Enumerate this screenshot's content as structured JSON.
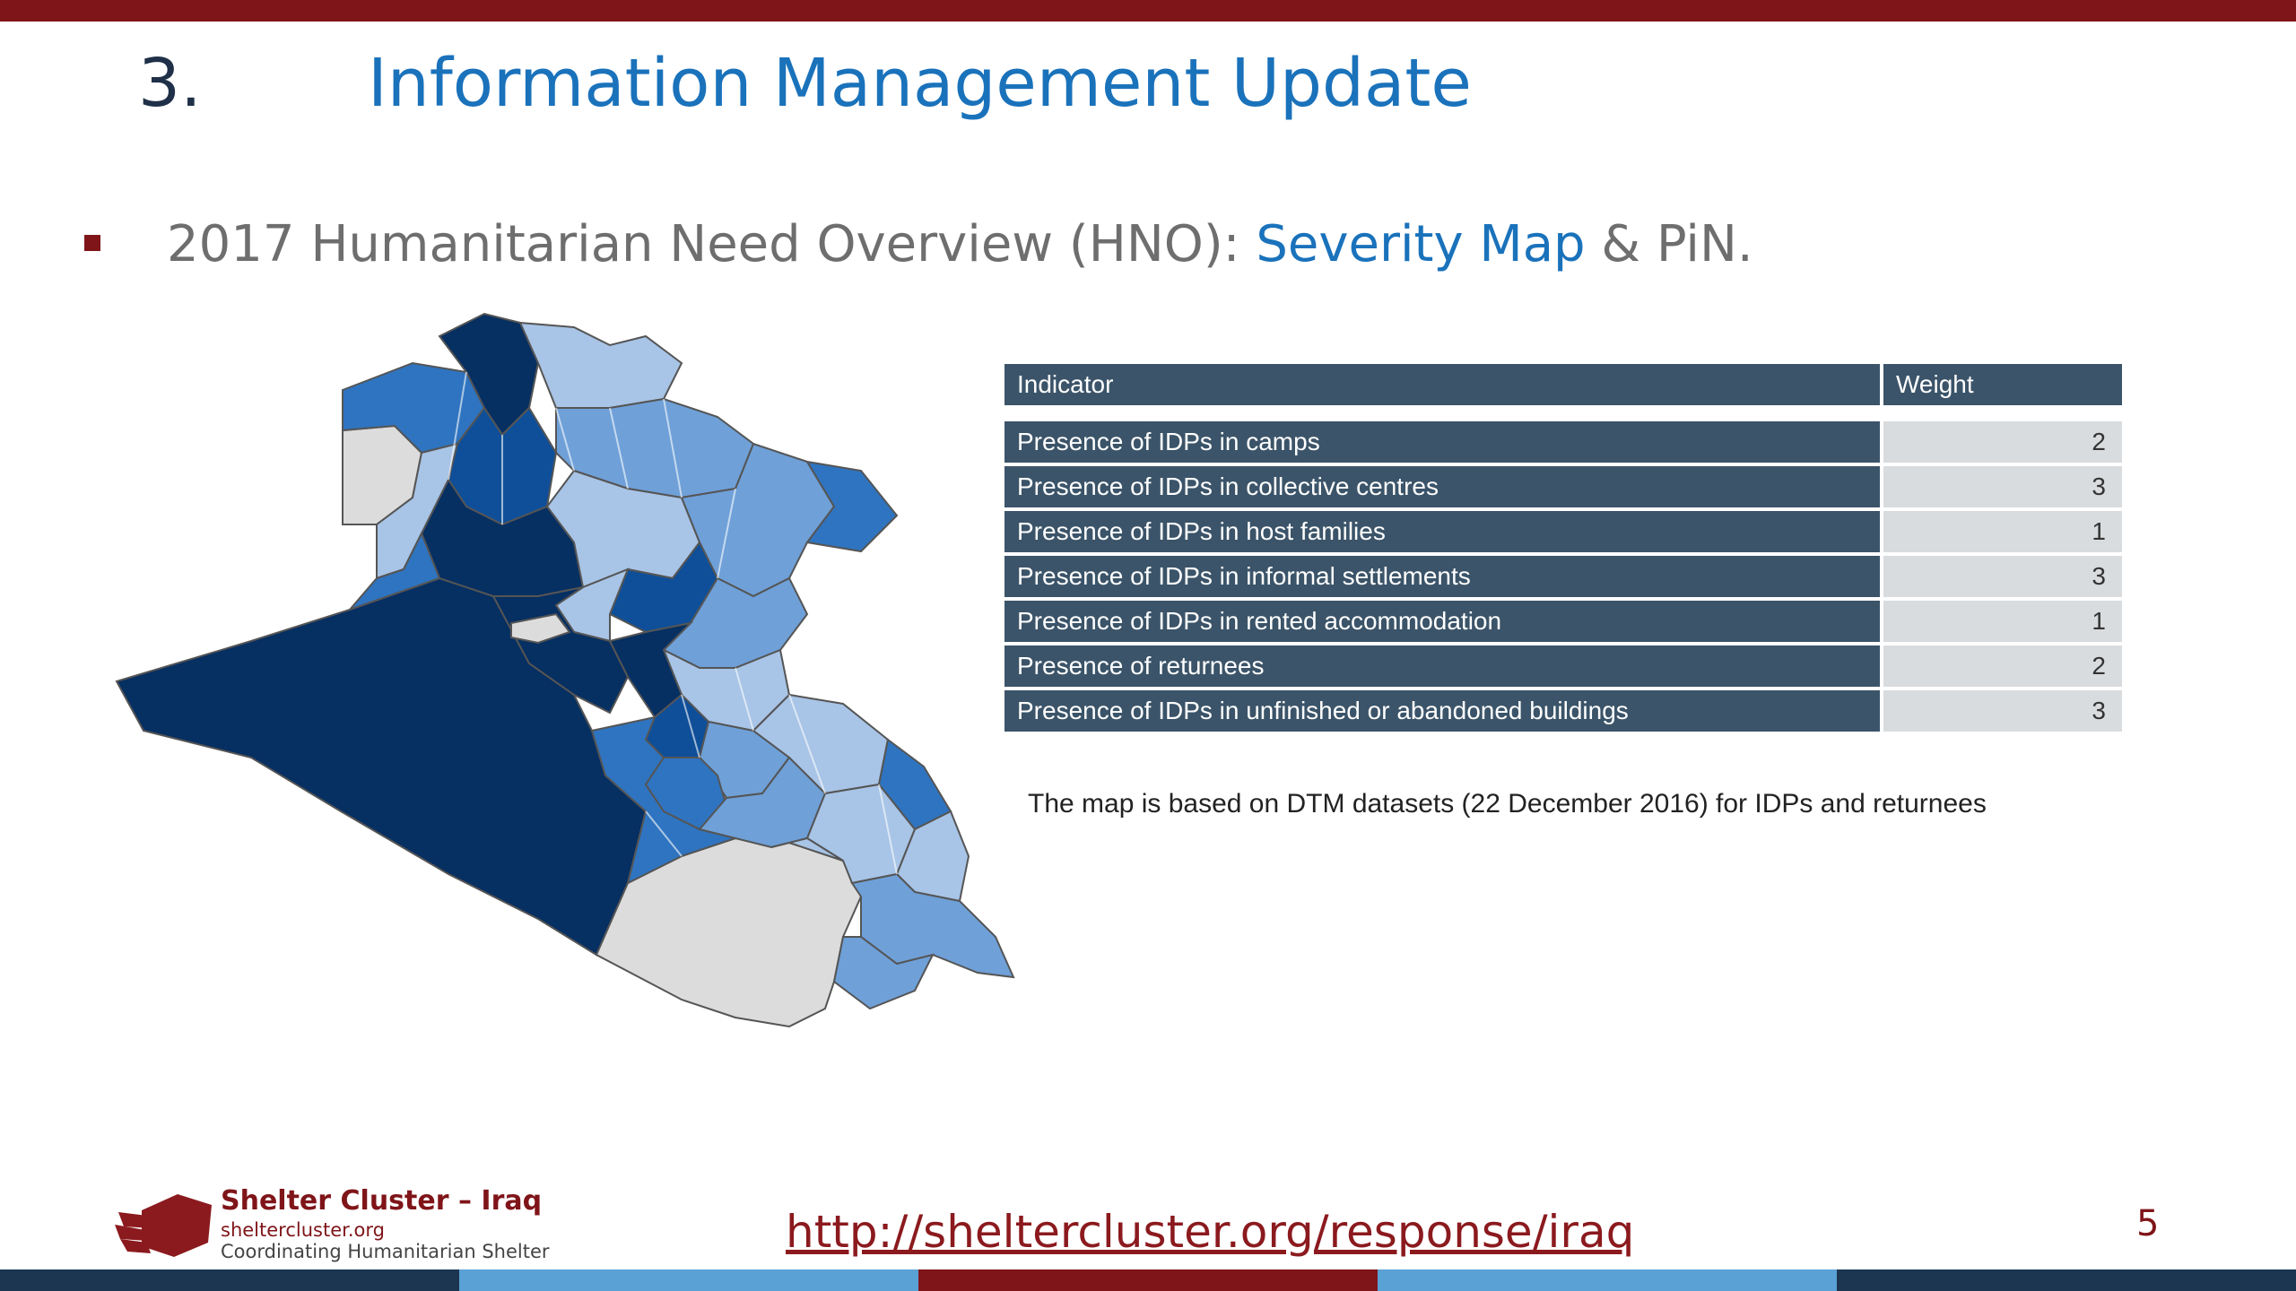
{
  "slide": {
    "section_number": "3.",
    "title": "Information Management Update",
    "bullet": {
      "prefix": "2017 Humanitarian Need Overview (HNO): ",
      "highlight": "Severity Map",
      "suffix": " & PiN."
    },
    "page_number": "5"
  },
  "table": {
    "headers": {
      "indicator": "Indicator",
      "weight": "Weight"
    },
    "rows": [
      {
        "indicator": "Presence of IDPs in camps",
        "weight": "2"
      },
      {
        "indicator": "Presence of IDPs in collective centres",
        "weight": "3"
      },
      {
        "indicator": "Presence of IDPs in host families",
        "weight": "1"
      },
      {
        "indicator": "Presence of IDPs in informal settlements",
        "weight": "3"
      },
      {
        "indicator": "Presence of IDPs in rented accommodation",
        "weight": "1"
      },
      {
        "indicator": "Presence of returnees",
        "weight": "2"
      },
      {
        "indicator": "Presence of IDPs in unfinished or abandoned buildings",
        "weight": "3"
      }
    ]
  },
  "note": "The map is based on DTM datasets (22 December 2016) for IDPs and returnees",
  "footer": {
    "org_name": "Shelter Cluster – Iraq",
    "site": "sheltercluster.org",
    "tagline": "Coordinating Humanitarian Shelter",
    "link": "http://sheltercluster.org/response/iraq"
  },
  "colors": {
    "brand_red": "#7f1519",
    "title_blue": "#1a72bb",
    "table_header": "#3b5469",
    "severity_1": "#a8c4e6",
    "severity_2": "#6fa0d8",
    "severity_3": "#2f74c0",
    "severity_4": "#0f4f99",
    "severity_5": "#062f62",
    "no_data": "#dcdcdc",
    "bottom_band": [
      "#1c3550",
      "#5aa1d6",
      "#7f1519",
      "#5aa1d6",
      "#1c3550"
    ]
  },
  "icons": {
    "logo": "shelter-hands-logo-icon"
  }
}
